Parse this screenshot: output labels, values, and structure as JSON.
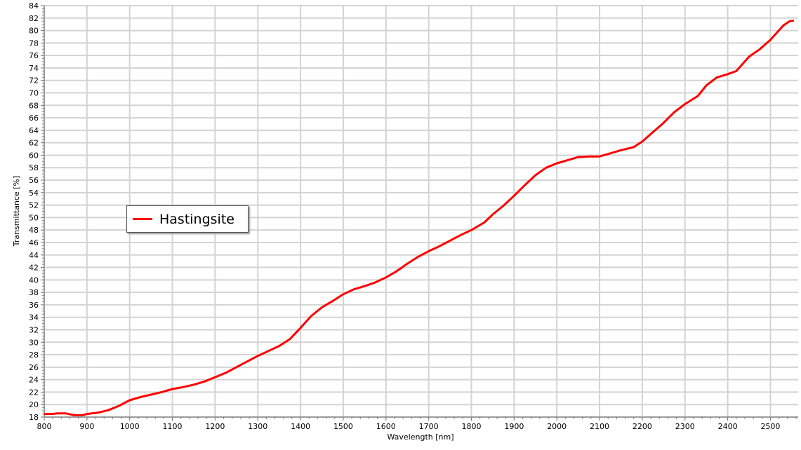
{
  "chart_data": {
    "type": "line",
    "xlabel": "Wavelength [nm]",
    "ylabel": "Transmittance [%]",
    "xlim": [
      800,
      2565
    ],
    "ylim": [
      18,
      84
    ],
    "xticks": [
      800,
      900,
      1000,
      1100,
      1200,
      1300,
      1400,
      1500,
      1600,
      1700,
      1800,
      1900,
      2000,
      2100,
      2200,
      2300,
      2400,
      2500
    ],
    "yticks": [
      18,
      20,
      22,
      24,
      26,
      28,
      30,
      32,
      34,
      36,
      38,
      40,
      42,
      44,
      46,
      48,
      50,
      52,
      54,
      56,
      58,
      60,
      62,
      64,
      66,
      68,
      70,
      72,
      74,
      76,
      78,
      80,
      82,
      84
    ],
    "grid": true,
    "legend_placement": "center-left",
    "series": [
      {
        "name": "Hastingsite",
        "color": "#ff0000",
        "x": [
          800,
          820,
          830,
          850,
          870,
          890,
          900,
          925,
          950,
          975,
          1000,
          1025,
          1050,
          1075,
          1100,
          1125,
          1150,
          1175,
          1200,
          1225,
          1250,
          1275,
          1300,
          1325,
          1350,
          1375,
          1400,
          1425,
          1450,
          1475,
          1500,
          1525,
          1550,
          1575,
          1600,
          1625,
          1650,
          1675,
          1700,
          1725,
          1750,
          1775,
          1800,
          1830,
          1850,
          1875,
          1900,
          1925,
          1950,
          1975,
          2000,
          2025,
          2050,
          2075,
          2100,
          2125,
          2150,
          2180,
          2200,
          2225,
          2250,
          2275,
          2300,
          2330,
          2350,
          2375,
          2400,
          2420,
          2450,
          2475,
          2500,
          2530,
          2545,
          2555
        ],
        "y": [
          18.5,
          18.5,
          18.6,
          18.6,
          18.3,
          18.3,
          18.5,
          18.7,
          19.1,
          19.8,
          20.7,
          21.2,
          21.6,
          22.0,
          22.5,
          22.8,
          23.2,
          23.7,
          24.4,
          25.1,
          26.0,
          26.9,
          27.8,
          28.6,
          29.4,
          30.5,
          32.3,
          34.2,
          35.6,
          36.6,
          37.7,
          38.5,
          39.0,
          39.6,
          40.4,
          41.4,
          42.6,
          43.7,
          44.6,
          45.4,
          46.3,
          47.2,
          48.0,
          49.2,
          50.5,
          51.9,
          53.5,
          55.2,
          56.8,
          58.0,
          58.7,
          59.2,
          59.7,
          59.8,
          59.8,
          60.3,
          60.8,
          61.3,
          62.2,
          63.7,
          65.2,
          66.9,
          68.2,
          69.5,
          71.2,
          72.5,
          73.0,
          73.5,
          75.8,
          77.0,
          78.5,
          80.8,
          81.5,
          81.6
        ]
      }
    ]
  }
}
